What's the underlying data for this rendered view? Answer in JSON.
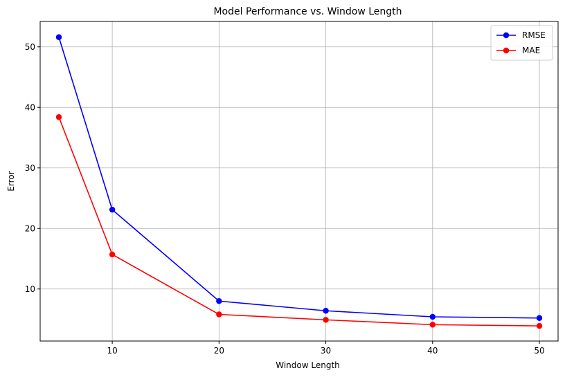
{
  "chart_data": {
    "type": "line",
    "title": "Model Performance vs. Window Length",
    "xlabel": "Window Length",
    "ylabel": "Error",
    "xlim": [
      3.25,
      51.75
    ],
    "ylim": [
      1.4,
      54.2
    ],
    "xticks": [
      10,
      20,
      30,
      40,
      50
    ],
    "yticks": [
      10,
      20,
      30,
      40,
      50
    ],
    "grid": true,
    "legend_position": "top-right",
    "x": [
      5,
      10,
      20,
      30,
      40,
      50
    ],
    "series": [
      {
        "name": "RMSE",
        "color": "#0000ff",
        "marker": "circle",
        "values": [
          51.6,
          23.1,
          8.0,
          6.4,
          5.4,
          5.2
        ]
      },
      {
        "name": "MAE",
        "color": "#ff0000",
        "marker": "circle",
        "values": [
          38.4,
          15.7,
          5.8,
          4.9,
          4.1,
          3.9
        ]
      }
    ]
  }
}
